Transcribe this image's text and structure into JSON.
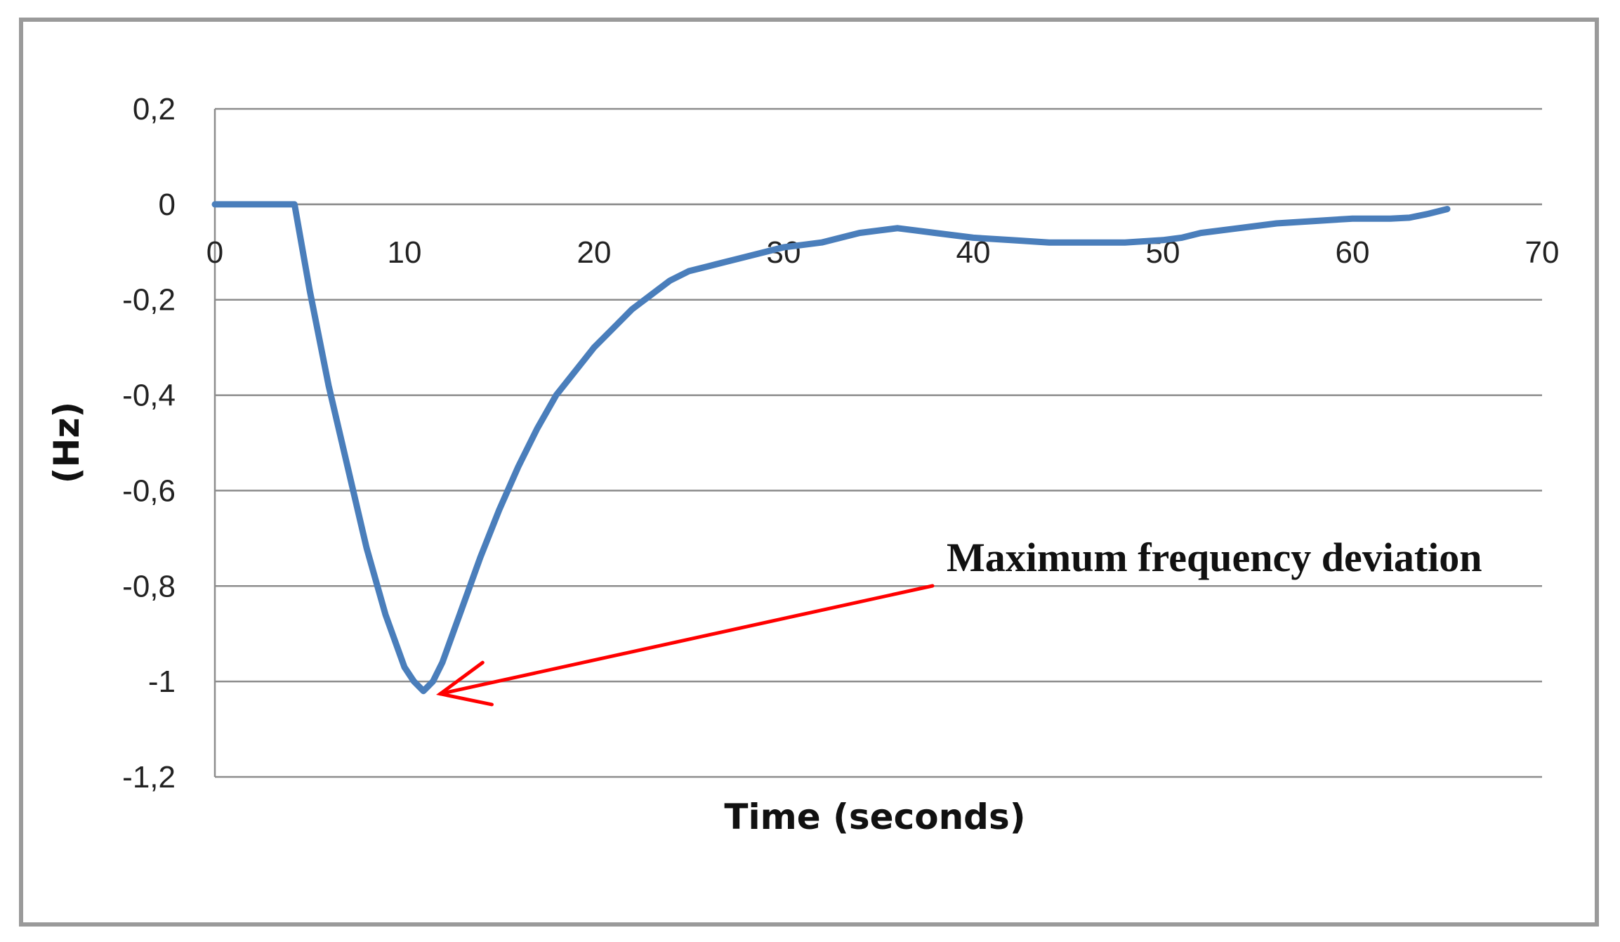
{
  "chart_data": {
    "type": "line",
    "title": "",
    "xlabel": "Time (seconds)",
    "ylabel": "(Hz)",
    "xlim": [
      0,
      70
    ],
    "ylim": [
      -1.2,
      0.2
    ],
    "xticks": [
      0,
      10,
      20,
      30,
      40,
      50,
      60,
      70
    ],
    "xtick_labels": [
      "0",
      "10",
      "20",
      "30",
      "40",
      "50",
      "60",
      "70"
    ],
    "yticks": [
      0.2,
      0,
      -0.2,
      -0.4,
      -0.6,
      -0.8,
      -1,
      -1.2
    ],
    "ytick_labels": [
      "0,2",
      "0",
      "-0,2",
      "-0,4",
      "-0,6",
      "-0,8",
      "-1",
      "-1,2"
    ],
    "grid": true,
    "legend": "none",
    "series": [
      {
        "color": "#4a7ebb",
        "x": [
          0,
          2,
          4.2,
          5,
          6,
          7,
          8,
          9,
          10,
          10.5,
          11,
          11.5,
          12,
          13,
          14,
          15,
          16,
          17,
          18,
          19,
          20,
          21,
          22,
          23,
          24,
          25,
          26,
          27,
          28,
          30,
          32,
          34,
          35,
          36,
          37,
          38,
          40,
          42,
          44,
          46,
          48,
          50,
          51,
          52,
          54,
          56,
          58,
          60,
          62,
          63,
          64,
          65
        ],
        "y": [
          0,
          0,
          0,
          -0.18,
          -0.38,
          -0.55,
          -0.72,
          -0.86,
          -0.97,
          -1.0,
          -1.02,
          -1.0,
          -0.96,
          -0.85,
          -0.74,
          -0.64,
          -0.55,
          -0.47,
          -0.4,
          -0.35,
          -0.3,
          -0.26,
          -0.22,
          -0.19,
          -0.16,
          -0.14,
          -0.13,
          -0.12,
          -0.11,
          -0.09,
          -0.08,
          -0.06,
          -0.055,
          -0.05,
          -0.055,
          -0.06,
          -0.07,
          -0.075,
          -0.08,
          -0.08,
          -0.08,
          -0.075,
          -0.07,
          -0.06,
          -0.05,
          -0.04,
          -0.035,
          -0.03,
          -0.03,
          -0.028,
          -0.02,
          -0.01
        ]
      }
    ],
    "annotations": [
      {
        "text": "Maximum  frequency deviation",
        "arrow_to": [
          11,
          -1.02
        ],
        "arrow_color": "#ff0000"
      }
    ]
  }
}
